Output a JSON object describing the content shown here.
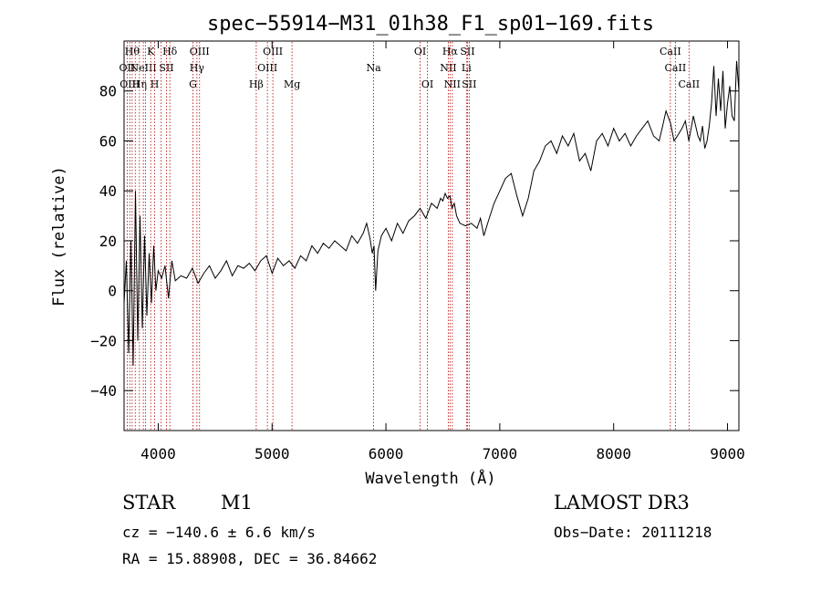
{
  "chart_data": {
    "type": "line",
    "title": "spec−55914−M31_01h38_F1_sp01−169.fits",
    "xlabel": "Wavelength (Å)",
    "ylabel": "Flux (relative)",
    "xlim": [
      3700,
      9100
    ],
    "ylim": [
      -56,
      100
    ],
    "x_ticks": [
      4000,
      5000,
      6000,
      7000,
      8000,
      9000
    ],
    "y_ticks": [
      -40,
      -20,
      0,
      20,
      40,
      60,
      80
    ],
    "tick_labels": {
      "x": [
        "4000",
        "5000",
        "6000",
        "7000",
        "8000",
        "9000"
      ],
      "y": [
        "−40",
        "−20",
        "0",
        "20",
        "40",
        "60",
        "80"
      ]
    },
    "series": [
      {
        "name": "flux",
        "color": "#000000",
        "x": [
          3700,
          3720,
          3740,
          3760,
          3780,
          3800,
          3820,
          3840,
          3860,
          3880,
          3900,
          3920,
          3940,
          3960,
          3980,
          4000,
          4030,
          4060,
          4090,
          4120,
          4150,
          4200,
          4250,
          4300,
          4350,
          4400,
          4450,
          4500,
          4550,
          4600,
          4650,
          4700,
          4750,
          4800,
          4850,
          4900,
          4950,
          5000,
          5050,
          5100,
          5150,
          5200,
          5250,
          5300,
          5350,
          5400,
          5450,
          5500,
          5550,
          5600,
          5650,
          5700,
          5750,
          5800,
          5830,
          5860,
          5880,
          5895,
          5910,
          5930,
          5960,
          6000,
          6050,
          6100,
          6150,
          6200,
          6250,
          6300,
          6350,
          6400,
          6450,
          6480,
          6500,
          6520,
          6540,
          6563,
          6580,
          6600,
          6620,
          6650,
          6700,
          6750,
          6800,
          6830,
          6860,
          6900,
          6950,
          7000,
          7050,
          7100,
          7150,
          7200,
          7250,
          7300,
          7350,
          7400,
          7450,
          7500,
          7550,
          7600,
          7650,
          7700,
          7750,
          7800,
          7850,
          7900,
          7950,
          8000,
          8050,
          8100,
          8150,
          8200,
          8250,
          8300,
          8350,
          8400,
          8430,
          8460,
          8500,
          8530,
          8560,
          8600,
          8630,
          8660,
          8700,
          8740,
          8760,
          8780,
          8800,
          8820,
          8840,
          8860,
          8880,
          8900,
          8920,
          8940,
          8960,
          8980,
          9000,
          9020,
          9040,
          9060,
          9080,
          9100
        ],
        "y": [
          -5,
          12,
          -25,
          20,
          -30,
          40,
          -20,
          30,
          -15,
          22,
          -10,
          15,
          -5,
          18,
          0,
          8,
          5,
          10,
          -3,
          12,
          4,
          6,
          5,
          9,
          3,
          7,
          10,
          5,
          8,
          12,
          6,
          10,
          9,
          11,
          8,
          12,
          14,
          7,
          13,
          10,
          12,
          9,
          14,
          12,
          18,
          15,
          19,
          17,
          20,
          18,
          16,
          22,
          19,
          23,
          27,
          21,
          15,
          18,
          0,
          16,
          22,
          25,
          20,
          27,
          23,
          28,
          30,
          33,
          29,
          35,
          33,
          37,
          36,
          39,
          37,
          38,
          33,
          35,
          30,
          27,
          26,
          27,
          25,
          29,
          22,
          28,
          35,
          40,
          45,
          47,
          38,
          30,
          37,
          48,
          52,
          58,
          60,
          55,
          62,
          58,
          63,
          52,
          55,
          48,
          60,
          63,
          58,
          65,
          60,
          63,
          58,
          62,
          65,
          68,
          62,
          60,
          66,
          72,
          67,
          60,
          62,
          65,
          68,
          60,
          70,
          62,
          60,
          66,
          57,
          60,
          66,
          75,
          90,
          70,
          85,
          72,
          88,
          65,
          75,
          82,
          70,
          68,
          92,
          80
        ]
      }
    ],
    "line_markers": [
      {
        "x": 3727,
        "label": "OII",
        "row": 1
      },
      {
        "x": 3750,
        "label": "OIII",
        "row": 2
      },
      {
        "x": 3771,
        "label": "Hθ",
        "row": 0
      },
      {
        "x": 3798,
        "label": "",
        "row": 0
      },
      {
        "x": 3835,
        "label": "Hη",
        "row": 2
      },
      {
        "x": 3869,
        "label": "NeIII",
        "row": 1
      },
      {
        "x": 3889,
        "label": "",
        "row": 0
      },
      {
        "x": 3934,
        "label": "K",
        "row": 0
      },
      {
        "x": 3969,
        "label": "H",
        "row": 2
      },
      {
        "x": 4026,
        "label": "",
        "row": 0
      },
      {
        "x": 4072,
        "label": "SII",
        "row": 1
      },
      {
        "x": 4102,
        "label": "Hδ",
        "row": 0
      },
      {
        "x": 4305,
        "label": "G",
        "row": 2
      },
      {
        "x": 4340,
        "label": "Hγ",
        "row": 1
      },
      {
        "x": 4363,
        "label": "OIII",
        "row": 0
      },
      {
        "x": 4861,
        "label": "Hβ",
        "row": 2
      },
      {
        "x": 4959,
        "label": "OIII",
        "row": 1
      },
      {
        "x": 5007,
        "label": "OIII",
        "row": 0
      },
      {
        "x": 5175,
        "label": "Mg",
        "row": 2
      },
      {
        "x": 5892,
        "label": "Na",
        "row": 1
      },
      {
        "x": 6300,
        "label": "OI",
        "row": 0
      },
      {
        "x": 6364,
        "label": "OI",
        "row": 2
      },
      {
        "x": 6548,
        "label": "NII",
        "row": 1
      },
      {
        "x": 6563,
        "label": "Hα",
        "row": 0
      },
      {
        "x": 6583,
        "label": "NII",
        "row": 2
      },
      {
        "x": 6707,
        "label": "Li",
        "row": 1
      },
      {
        "x": 6716,
        "label": "SII",
        "row": 0
      },
      {
        "x": 6731,
        "label": "SII",
        "row": 2
      },
      {
        "x": 8498,
        "label": "CaII",
        "row": 0
      },
      {
        "x": 8542,
        "label": "CaII",
        "row": 1
      },
      {
        "x": 8662,
        "label": "CaII",
        "row": 2
      }
    ],
    "marker_color": "#b00000"
  },
  "info": {
    "object_type": "STAR",
    "subclass": "M1",
    "survey": "LAMOST DR3",
    "redshift_line": "cz = −140.6 ± 6.6 km/s",
    "obs_date": "Obs−Date: 20111218",
    "coords": "RA =  15.88908, DEC =  36.84662"
  }
}
